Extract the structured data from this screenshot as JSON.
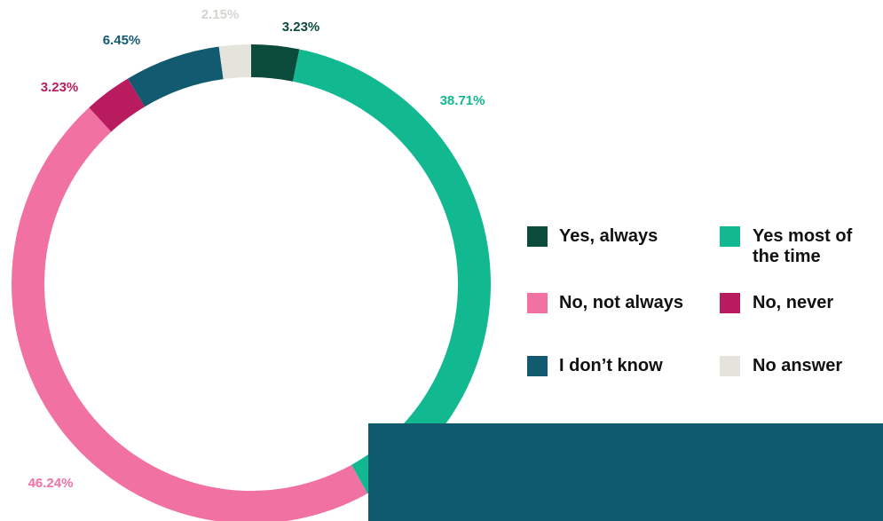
{
  "chart_data": {
    "type": "pie",
    "categories": [
      "Yes, always",
      "Yes most of the time",
      "No, not always",
      "No, never",
      "I don’t know",
      "No answer"
    ],
    "values": [
      3.23,
      38.71,
      46.24,
      3.23,
      6.45,
      2.15
    ],
    "value_labels": [
      "3.23%",
      "38.71%",
      "46.24%",
      "3.23%",
      "6.45%",
      "2.15%"
    ],
    "colors": [
      "#0a4b3b",
      "#12b990",
      "#f271a3",
      "#b81c5e",
      "#125a70",
      "#e4e4dd"
    ],
    "label_colors": [
      "#0a4b3b",
      "#12b990",
      "#f271a3",
      "#b81c5e",
      "#125a70",
      "#d4d4cf"
    ],
    "donut": true,
    "start": "12 o'clock",
    "direction": "clockwise",
    "legend_placement": "right",
    "title": ""
  },
  "decor": {
    "panel_color": "#105a70"
  }
}
